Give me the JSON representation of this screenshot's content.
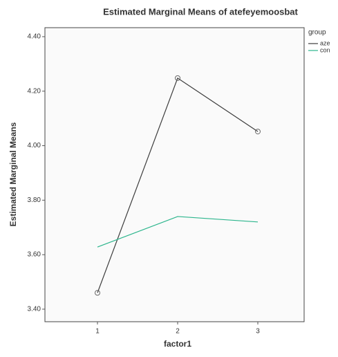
{
  "chart_data": {
    "type": "line",
    "title": "Estimated Marginal Means of atefeyemoosbat",
    "x_label": "factor1",
    "y_label": "Estimated Marginal Means",
    "legend_title": "group",
    "categories": [
      "1",
      "2",
      "3"
    ],
    "series": [
      {
        "name": "aze",
        "color": "#3c3c3c",
        "values": [
          3.46,
          4.248,
          4.052
        ]
      },
      {
        "name": "con",
        "color": "#2bb58c",
        "values": [
          3.628,
          3.74,
          3.72
        ]
      }
    ],
    "ylim": [
      3.354,
      4.433
    ],
    "yticks": [
      {
        "value": 3.4,
        "label": "3.40"
      },
      {
        "value": 3.6,
        "label": "3.60"
      },
      {
        "value": 3.8,
        "label": "3.80"
      },
      {
        "value": 4.0,
        "label": "4.00"
      },
      {
        "value": 4.2,
        "label": "4.20"
      },
      {
        "value": 4.4,
        "label": "4.40"
      }
    ],
    "legend": "right"
  }
}
